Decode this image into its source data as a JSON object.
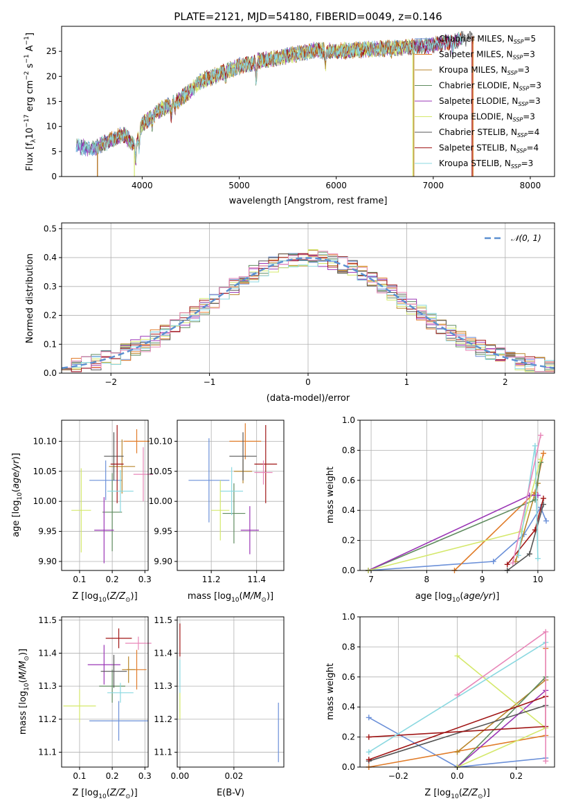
{
  "figure_title": "PLATE=2121, MJD=54180, FIBERID=0049, z=0.146",
  "colors": {
    "chabrier_miles": "#6a8fd8",
    "salpeter_miles": "#e07b28",
    "kroupa_miles": "#b8862b",
    "chabrier_elodie": "#5e8a5e",
    "salpeter_elodie": "#9a35b5",
    "kroupa_elodie": "#d4e86a",
    "chabrier_stelib": "#555555",
    "salpeter_stelib": "#a01515",
    "kroupa_stelib": "#8ad8e0",
    "pink": "#e886b8",
    "normal": "#5b8fd0"
  },
  "chart_data": [
    {
      "id": "spectrum",
      "type": "line",
      "title": "PLATE=2121, MJD=54180, FIBERID=0049, z=0.146",
      "xlabel": "wavelength [Angstrom, rest frame]",
      "ylabel": "Flux [fλ10⁻¹⁷ erg cm⁻² s⁻¹ A⁻¹]",
      "xlim": [
        3170,
        8250
      ],
      "ylim": [
        0,
        30
      ],
      "xticks": [
        4000,
        5000,
        6000,
        7000,
        8000
      ],
      "yticks": [
        0,
        5,
        10,
        15,
        20,
        25
      ],
      "legend_position": "top-right",
      "legend": [
        {
          "label": "Chabrier MILES, N_SSP=5",
          "main": "Chabrier MILES, N",
          "sub": "SSP",
          "tail": "=5",
          "color": "#6a8fd8"
        },
        {
          "label": "Salpeter MILES, N_SSP=3",
          "main": "Salpeter MILES, N",
          "sub": "SSP",
          "tail": "=3",
          "color": "#e07b28"
        },
        {
          "label": "Kroupa MILES, N_SSP=3",
          "main": "Kroupa MILES, N",
          "sub": "SSP",
          "tail": "=3",
          "color": "#b8862b"
        },
        {
          "label": "Chabrier ELODIE, N_SSP=3",
          "main": "Chabrier ELODIE, N",
          "sub": "SSP",
          "tail": "=3",
          "color": "#5e8a5e"
        },
        {
          "label": "Salpeter ELODIE, N_SSP=3",
          "main": "Salpeter ELODIE, N",
          "sub": "SSP",
          "tail": "=3",
          "color": "#9a35b5"
        },
        {
          "label": "Kroupa ELODIE, N_SSP=3",
          "main": "Kroupa ELODIE, N",
          "sub": "SSP",
          "tail": "=3",
          "color": "#d4e86a"
        },
        {
          "label": "Chabrier STELIB, N_SSP=4",
          "main": "Chabrier STELIB, N",
          "sub": "SSP",
          "tail": "=4",
          "color": "#555555"
        },
        {
          "label": "Salpeter STELIB, N_SSP=4",
          "main": "Salpeter STELIB, N",
          "sub": "SSP",
          "tail": "=4",
          "color": "#a01515"
        },
        {
          "label": "Kroupa STELIB, N_SSP=3",
          "main": "Kroupa STELIB, N",
          "sub": "SSP",
          "tail": "=3",
          "color": "#8ad8e0"
        }
      ],
      "continuum": [
        [
          3320,
          6.0
        ],
        [
          3500,
          5.6
        ],
        [
          3650,
          7.0
        ],
        [
          3800,
          8.5
        ],
        [
          3930,
          6.2
        ],
        [
          4000,
          10.5
        ],
        [
          4200,
          13.5
        ],
        [
          4400,
          15.5
        ],
        [
          4600,
          19.0
        ],
        [
          4800,
          20.5
        ],
        [
          5000,
          22.0
        ],
        [
          5200,
          23.0
        ],
        [
          5400,
          23.7
        ],
        [
          5600,
          24.5
        ],
        [
          5800,
          25.2
        ],
        [
          6000,
          25.0
        ],
        [
          6200,
          25.3
        ],
        [
          6400,
          25.5
        ],
        [
          6600,
          25.7
        ],
        [
          6800,
          25.9
        ],
        [
          7000,
          26.3
        ],
        [
          7200,
          27.0
        ],
        [
          7400,
          28.0
        ]
      ],
      "absorption_lines": [
        [
          3934,
          3.0
        ],
        [
          3969,
          2.5
        ],
        [
          4102,
          1.5
        ],
        [
          4300,
          2.0
        ],
        [
          4340,
          1.5
        ],
        [
          4861,
          1.0
        ],
        [
          5175,
          3.5
        ],
        [
          5890,
          3.0
        ],
        [
          6563,
          0.8
        ],
        [
          7200,
          2.0
        ]
      ],
      "cutoffs": [
        {
          "series": "Salpeter MILES",
          "x_start": 3540,
          "x_end": 7410,
          "color": "#e07b28"
        },
        {
          "series": "Kroupa MILES",
          "x_start": 3540,
          "x_end": 6800,
          "color": "#b8862b"
        },
        {
          "series": "Kroupa ELODIE",
          "x_start": 3920,
          "x_end": 6790,
          "color": "#d4e86a"
        },
        {
          "series": "Salpeter STELIB",
          "x_start": 3540,
          "x_end": 7400,
          "color": "#a01515"
        }
      ]
    },
    {
      "id": "residuals",
      "type": "histogram",
      "xlabel": "(data-model)/error",
      "ylabel": "Normed distribution",
      "xlim": [
        -2.5,
        2.5
      ],
      "ylim": [
        0,
        0.52
      ],
      "xticks": [
        -2,
        -1,
        0,
        1,
        2
      ],
      "yticks": [
        0.0,
        0.1,
        0.2,
        0.3,
        0.4,
        0.5
      ],
      "grid": true,
      "bin_width": 0.1,
      "reference_label": "𝒩(0, 1)",
      "legend_position": "top-right"
    },
    {
      "id": "age_vs_Z",
      "type": "errorbar",
      "xlabel": "Z [log10(Z/Z⊙)]",
      "ylabel": "age  [log10(age/yr)]",
      "xlim": [
        0.045,
        0.31
      ],
      "ylim": [
        9.885,
        10.135
      ],
      "xticks": [
        0.1,
        0.2,
        0.3
      ],
      "yticks": [
        9.9,
        9.95,
        10.0,
        10.05,
        10.1
      ],
      "grid": true,
      "points": [
        {
          "x": 0.18,
          "xerr": 0.05,
          "y": 10.035,
          "yerr": 0.033,
          "color": "#6a8fd8"
        },
        {
          "x": 0.275,
          "xerr": 0.04,
          "y": 10.1,
          "yerr": 0.02,
          "color": "#e07b28"
        },
        {
          "x": 0.23,
          "xerr": 0.04,
          "y": 10.058,
          "yerr": 0.045,
          "color": "#b8862b"
        },
        {
          "x": 0.2,
          "xerr": 0.03,
          "y": 9.982,
          "yerr": 0.065,
          "color": "#5e8a5e"
        },
        {
          "x": 0.175,
          "xerr": 0.03,
          "y": 9.952,
          "yerr": 0.055,
          "color": "#9a35b5"
        },
        {
          "x": 0.105,
          "xerr": 0.03,
          "y": 9.985,
          "yerr": 0.07,
          "color": "#d4e86a"
        },
        {
          "x": 0.205,
          "xerr": 0.03,
          "y": 10.075,
          "yerr": 0.04,
          "color": "#555555"
        },
        {
          "x": 0.215,
          "xerr": 0.02,
          "y": 10.062,
          "yerr": 0.065,
          "color": "#a01515"
        },
        {
          "x": 0.225,
          "xerr": 0.04,
          "y": 10.017,
          "yerr": 0.035,
          "color": "#8ad8e0"
        },
        {
          "x": 0.295,
          "xerr": 0.03,
          "y": 10.045,
          "yerr": 0.045,
          "color": "#e886b8"
        }
      ]
    },
    {
      "id": "age_vs_mass",
      "type": "errorbar",
      "xlabel": "mass [log10(M/M⊙)]",
      "ylabel": "",
      "xlim": [
        11.05,
        11.52
      ],
      "ylim": [
        9.885,
        10.135
      ],
      "xticks": [
        11.2,
        11.4
      ],
      "yticks": [
        9.9,
        9.95,
        10.0,
        10.05,
        10.1
      ],
      "grid": true,
      "points": [
        {
          "x": 11.19,
          "xerr": 0.09,
          "y": 10.035,
          "yerr": 0.07,
          "color": "#6a8fd8"
        },
        {
          "x": 11.35,
          "xerr": 0.07,
          "y": 10.1,
          "yerr": 0.03,
          "color": "#e07b28"
        },
        {
          "x": 11.34,
          "xerr": 0.04,
          "y": 10.05,
          "yerr": 0.02,
          "color": "#b8862b"
        },
        {
          "x": 11.3,
          "xerr": 0.05,
          "y": 9.98,
          "yerr": 0.05,
          "color": "#5e8a5e"
        },
        {
          "x": 11.37,
          "xerr": 0.04,
          "y": 9.952,
          "yerr": 0.04,
          "color": "#9a35b5"
        },
        {
          "x": 11.24,
          "xerr": 0.04,
          "y": 9.985,
          "yerr": 0.05,
          "color": "#d4e86a"
        },
        {
          "x": 11.34,
          "xerr": 0.06,
          "y": 10.075,
          "yerr": 0.04,
          "color": "#555555"
        },
        {
          "x": 11.44,
          "xerr": 0.05,
          "y": 10.062,
          "yerr": 0.065,
          "color": "#a01515"
        },
        {
          "x": 11.29,
          "xerr": 0.05,
          "y": 10.017,
          "yerr": 0.04,
          "color": "#8ad8e0"
        },
        {
          "x": 11.43,
          "xerr": 0.04,
          "y": 10.048,
          "yerr": 0.02,
          "color": "#e886b8"
        }
      ]
    },
    {
      "id": "mass_weight_vs_age",
      "type": "line",
      "xlabel": "age  [log10(age/yr)]",
      "ylabel": "mass weight",
      "xlim": [
        6.8,
        10.3
      ],
      "ylim": [
        0,
        1.0
      ],
      "xticks": [
        7,
        8,
        9,
        10
      ],
      "yticks": [
        0.0,
        0.2,
        0.4,
        0.6,
        0.8,
        1.0
      ],
      "grid": true,
      "series": [
        {
          "color": "#6a8fd8",
          "points": [
            [
              6.95,
              0.0
            ],
            [
              9.2,
              0.06
            ],
            [
              9.75,
              0.24
            ],
            [
              10.05,
              0.42
            ],
            [
              10.15,
              0.33
            ]
          ]
        },
        {
          "color": "#e07b28",
          "points": [
            [
              8.5,
              0.0
            ],
            [
              9.95,
              0.52
            ],
            [
              10.1,
              0.78
            ]
          ]
        },
        {
          "color": "#b8862b",
          "points": [
            [
              9.6,
              0.06
            ],
            [
              10.0,
              0.58
            ]
          ]
        },
        {
          "color": "#5e8a5e",
          "points": [
            [
              6.95,
              0.0
            ],
            [
              9.95,
              0.47
            ],
            [
              10.05,
              0.72
            ]
          ]
        },
        {
          "color": "#9a35b5",
          "points": [
            [
              6.95,
              0.0
            ],
            [
              9.85,
              0.5
            ],
            [
              10.0,
              0.5
            ]
          ]
        },
        {
          "color": "#d4e86a",
          "points": [
            [
              6.95,
              0.0
            ],
            [
              9.7,
              0.26
            ],
            [
              10.05,
              0.74
            ]
          ]
        },
        {
          "color": "#555555",
          "points": [
            [
              9.45,
              0.0
            ],
            [
              9.85,
              0.11
            ],
            [
              10.1,
              0.44
            ]
          ]
        },
        {
          "color": "#a01515",
          "points": [
            [
              9.45,
              0.04
            ],
            [
              9.95,
              0.27
            ],
            [
              10.1,
              0.48
            ]
          ]
        },
        {
          "color": "#8ad8e0",
          "points": [
            [
              9.65,
              0.1
            ],
            [
              9.95,
              0.83
            ],
            [
              10.0,
              0.08
            ]
          ]
        },
        {
          "color": "#e886b8",
          "points": [
            [
              9.55,
              0.05
            ],
            [
              10.05,
              0.9
            ]
          ]
        }
      ]
    },
    {
      "id": "mass_vs_Z",
      "type": "errorbar",
      "xlabel": "Z [log10(Z/Z⊙)]",
      "ylabel": "mass [log10(M/M⊙)]",
      "xlim": [
        0.045,
        0.31
      ],
      "ylim": [
        11.055,
        11.51
      ],
      "xticks": [
        0.1,
        0.2,
        0.3
      ],
      "yticks": [
        11.1,
        11.2,
        11.3,
        11.4,
        11.5
      ],
      "grid": true,
      "points": [
        {
          "x": 0.22,
          "xerr": 0.09,
          "y": 11.195,
          "yerr": 0.06,
          "color": "#6a8fd8"
        },
        {
          "x": 0.275,
          "xerr": 0.03,
          "y": 11.35,
          "yerr": 0.06,
          "color": "#e07b28"
        },
        {
          "x": 0.25,
          "xerr": 0.02,
          "y": 11.35,
          "yerr": 0.04,
          "color": "#b8862b"
        },
        {
          "x": 0.2,
          "xerr": 0.04,
          "y": 11.3,
          "yerr": 0.05,
          "color": "#5e8a5e"
        },
        {
          "x": 0.175,
          "xerr": 0.05,
          "y": 11.365,
          "yerr": 0.06,
          "color": "#9a35b5"
        },
        {
          "x": 0.1,
          "xerr": 0.05,
          "y": 11.24,
          "yerr": 0.05,
          "color": "#d4e86a"
        },
        {
          "x": 0.205,
          "xerr": 0.04,
          "y": 11.345,
          "yerr": 0.05,
          "color": "#555555"
        },
        {
          "x": 0.22,
          "xerr": 0.04,
          "y": 11.445,
          "yerr": 0.03,
          "color": "#a01515"
        },
        {
          "x": 0.225,
          "xerr": 0.04,
          "y": 11.28,
          "yerr": 0.03,
          "color": "#8ad8e0"
        },
        {
          "x": 0.28,
          "xerr": 0.04,
          "y": 11.43,
          "yerr": 0.02,
          "color": "#e886b8"
        }
      ]
    },
    {
      "id": "mass_vs_ebv",
      "type": "errorbar",
      "xlabel": "E(B-V)",
      "ylabel": "",
      "xlim": [
        -0.001,
        0.0385
      ],
      "ylim": [
        11.055,
        11.51
      ],
      "xticks": [
        0.0,
        0.02
      ],
      "yticks": [
        11.1,
        11.2,
        11.3,
        11.4,
        11.5
      ],
      "grid": true,
      "points": [
        {
          "x": 0.0,
          "xerr": 0.0,
          "y": 11.44,
          "yerr": 0.05,
          "color": "#a01515"
        },
        {
          "x": 0.0,
          "xerr": 0.0,
          "y": 11.3,
          "yerr": 0.08,
          "color": "#8ad8e0"
        },
        {
          "x": 0.0,
          "xerr": 0.0,
          "y": 11.24,
          "yerr": 0.04,
          "color": "#d4e86a"
        },
        {
          "x": 0.0365,
          "xerr": 0.0,
          "y": 11.16,
          "yerr": 0.09,
          "color": "#6a8fd8"
        }
      ]
    },
    {
      "id": "mass_weight_vs_Z",
      "type": "line",
      "xlabel": "Z [log10(Z/Z⊙)]",
      "ylabel": "mass weight",
      "xlim": [
        -0.33,
        0.33
      ],
      "ylim": [
        0,
        1.0
      ],
      "xticks": [
        -0.2,
        0.0,
        0.2
      ],
      "yticks": [
        0.0,
        0.2,
        0.4,
        0.6,
        0.8,
        1.0
      ],
      "grid": true,
      "series": [
        {
          "color": "#6a8fd8",
          "points": [
            [
              -0.3,
              0.33
            ],
            [
              0.0,
              0.0
            ],
            [
              0.3,
              0.06
            ]
          ]
        },
        {
          "color": "#e07b28",
          "points": [
            [
              -0.3,
              0.0
            ],
            [
              0.3,
              0.21
            ],
            [
              0.3,
              0.79
            ]
          ]
        },
        {
          "color": "#b8862b",
          "points": [
            [
              0.0,
              0.1
            ],
            [
              0.3,
              0.58
            ]
          ]
        },
        {
          "color": "#5e8a5e",
          "points": [
            [
              0.0,
              0.0
            ],
            [
              0.3,
              0.6
            ]
          ]
        },
        {
          "color": "#9a35b5",
          "points": [
            [
              0.0,
              0.0
            ],
            [
              0.3,
              0.51
            ]
          ]
        },
        {
          "color": "#d4e86a",
          "points": [
            [
              0.0,
              0.0
            ],
            [
              0.3,
              0.26
            ],
            [
              0.0,
              0.74
            ]
          ]
        },
        {
          "color": "#555555",
          "points": [
            [
              -0.3,
              0.04
            ],
            [
              0.3,
              0.41
            ]
          ]
        },
        {
          "color": "#a01515",
          "points": [
            [
              -0.3,
              0.05
            ],
            [
              0.3,
              0.47
            ],
            [
              0.3,
              0.27
            ],
            [
              -0.3,
              0.2
            ]
          ]
        },
        {
          "color": "#8ad8e0",
          "points": [
            [
              -0.3,
              0.1
            ],
            [
              0.3,
              0.83
            ]
          ]
        },
        {
          "color": "#e886b8",
          "points": [
            [
              0.0,
              0.48
            ],
            [
              0.3,
              0.9
            ],
            [
              0.3,
              0.04
            ]
          ]
        }
      ]
    }
  ]
}
